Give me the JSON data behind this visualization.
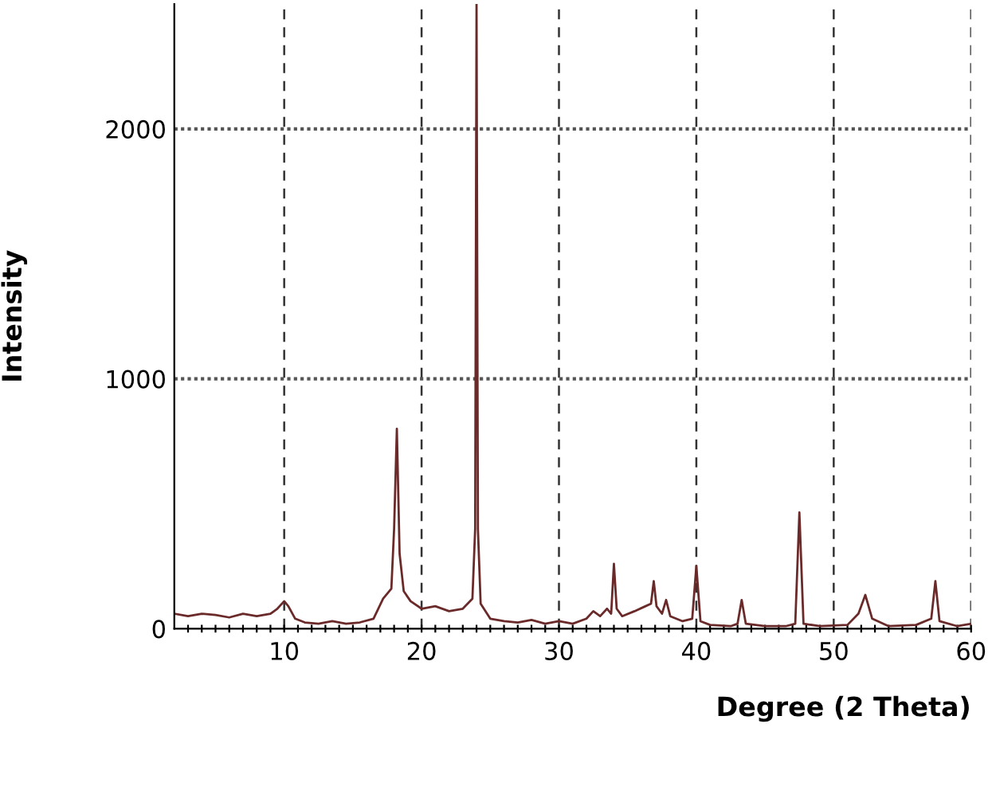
{
  "chart_data": {
    "type": "line",
    "xlabel": "Degree (2 Theta)",
    "ylabel": "Intensity",
    "xlim": [
      2,
      60
    ],
    "ylim": [
      0,
      2500
    ],
    "xticks": [
      {
        "value": 3,
        "label": null
      },
      {
        "value": 4,
        "label": null
      },
      {
        "value": 5,
        "label": null
      },
      {
        "value": 6,
        "label": null
      },
      {
        "value": 7,
        "label": null
      },
      {
        "value": 8,
        "label": null
      },
      {
        "value": 9,
        "label": null
      },
      10,
      {
        "value": 11,
        "label": null
      },
      {
        "value": 12,
        "label": null
      },
      {
        "value": 13,
        "label": null
      },
      {
        "value": 14,
        "label": null
      },
      {
        "value": 15,
        "label": null
      },
      {
        "value": 16,
        "label": null
      },
      {
        "value": 17,
        "label": null
      },
      {
        "value": 18,
        "label": null
      },
      {
        "value": 19,
        "label": null
      },
      20,
      {
        "value": 21,
        "label": null
      },
      {
        "value": 22,
        "label": null
      },
      {
        "value": 23,
        "label": null
      },
      {
        "value": 24,
        "label": null
      },
      {
        "value": 25,
        "label": null
      },
      {
        "value": 26,
        "label": null
      },
      {
        "value": 27,
        "label": null
      },
      {
        "value": 28,
        "label": null
      },
      {
        "value": 29,
        "label": null
      },
      30,
      {
        "value": 31,
        "label": null
      },
      {
        "value": 32,
        "label": null
      },
      {
        "value": 33,
        "label": null
      },
      {
        "value": 34,
        "label": null
      },
      {
        "value": 35,
        "label": null
      },
      {
        "value": 36,
        "label": null
      },
      {
        "value": 37,
        "label": null
      },
      {
        "value": 38,
        "label": null
      },
      {
        "value": 39,
        "label": null
      },
      40,
      {
        "value": 41,
        "label": null
      },
      {
        "value": 42,
        "label": null
      },
      {
        "value": 43,
        "label": null
      },
      {
        "value": 44,
        "label": null
      },
      {
        "value": 45,
        "label": null
      },
      {
        "value": 46,
        "label": null
      },
      {
        "value": 47,
        "label": null
      },
      {
        "value": 48,
        "label": null
      },
      {
        "value": 49,
        "label": null
      },
      50,
      {
        "value": 51,
        "label": null
      },
      {
        "value": 52,
        "label": null
      },
      {
        "value": 53,
        "label": null
      },
      {
        "value": 54,
        "label": null
      },
      {
        "value": 55,
        "label": null
      },
      {
        "value": 56,
        "label": null
      },
      {
        "value": 57,
        "label": null
      },
      {
        "value": 58,
        "label": null
      },
      {
        "value": 59,
        "label": null
      },
      60
    ],
    "yticks": [
      0,
      1000,
      2000
    ],
    "grid": true,
    "marker": "none",
    "line_style": "solid",
    "series": [
      {
        "color": "#6b2a2a",
        "x": [
          2,
          3,
          4,
          5,
          6,
          7,
          8,
          9,
          9.5,
          10,
          10.3,
          10.8,
          11.5,
          12.5,
          13.5,
          14.5,
          15.5,
          16.5,
          17.2,
          17.8,
          18.0,
          18.2,
          18.4,
          18.7,
          19.2,
          20,
          21,
          22,
          23,
          23.7,
          23.9,
          24.0,
          24.1,
          24.3,
          25,
          26,
          27,
          28,
          29,
          30,
          31,
          32,
          32.5,
          33,
          33.5,
          33.8,
          34.0,
          34.2,
          34.6,
          35.5,
          36.3,
          36.7,
          36.9,
          37.1,
          37.5,
          37.8,
          38.1,
          39,
          39.7,
          40.0,
          40.3,
          41,
          42.5,
          43.0,
          43.3,
          43.6,
          45,
          46.5,
          47.2,
          47.5,
          47.8,
          49,
          51,
          51.8,
          52.3,
          52.8,
          54,
          56,
          57.1,
          57.4,
          57.7,
          59,
          60
        ],
        "values": [
          60,
          50,
          60,
          55,
          45,
          60,
          50,
          60,
          80,
          110,
          90,
          40,
          25,
          20,
          30,
          20,
          25,
          40,
          120,
          160,
          400,
          800,
          300,
          150,
          110,
          80,
          90,
          70,
          80,
          120,
          400,
          2500,
          400,
          100,
          40,
          30,
          25,
          35,
          20,
          30,
          20,
          40,
          70,
          50,
          80,
          60,
          260,
          80,
          50,
          70,
          90,
          100,
          190,
          90,
          60,
          115,
          50,
          30,
          40,
          250,
          30,
          15,
          10,
          20,
          115,
          20,
          10,
          10,
          20,
          465,
          20,
          10,
          15,
          60,
          135,
          40,
          10,
          15,
          40,
          190,
          30,
          10,
          20
        ]
      }
    ]
  }
}
